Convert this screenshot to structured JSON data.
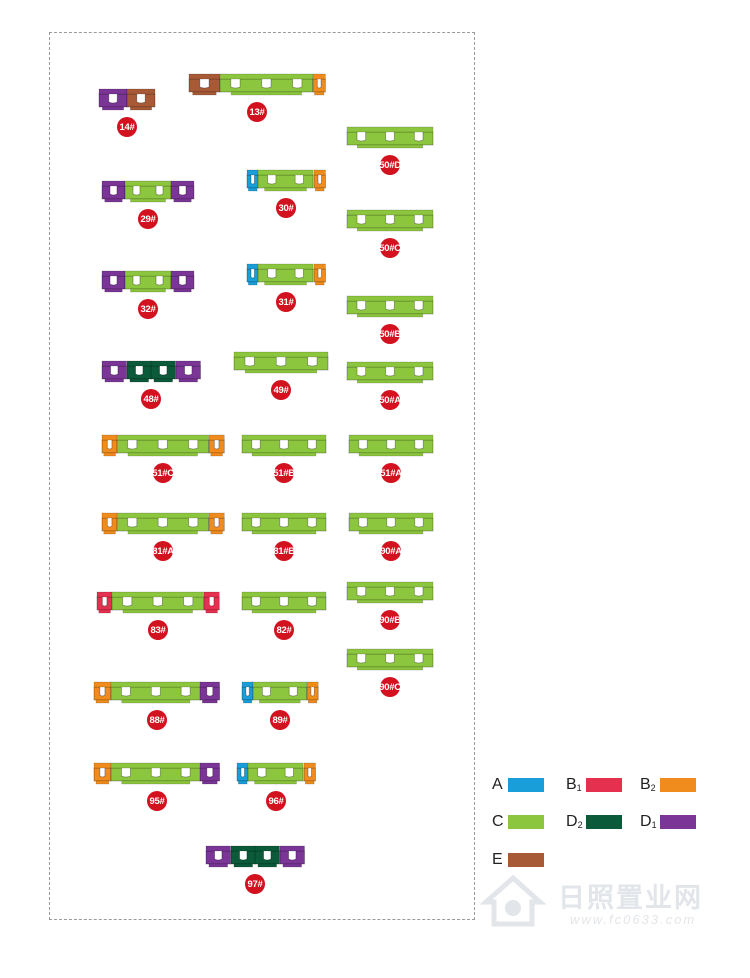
{
  "colors": {
    "A": "#1a9ed9",
    "B1": "#e6304f",
    "B2": "#f08c1e",
    "C": "#8cc63f",
    "D2": "#0b5a3a",
    "D1": "#7a3596",
    "E": "#a85a36",
    "badge": "#d2121f"
  },
  "buildings": [
    {
      "label": "14#",
      "units": [
        {
          "type": "D1",
          "w": 1
        },
        {
          "type": "E",
          "w": 1
        }
      ]
    },
    {
      "label": "13#",
      "units": [
        {
          "type": "E",
          "w": 1
        },
        {
          "type": "C",
          "w": 3
        },
        {
          "type": "B2",
          "w": 0.4
        }
      ]
    },
    {
      "label": "50#D",
      "units": [
        {
          "type": "C",
          "w": 3
        }
      ]
    },
    {
      "label": "29#",
      "units": [
        {
          "type": "D1",
          "w": 1
        },
        {
          "type": "C",
          "w": 2
        },
        {
          "type": "D1",
          "w": 1
        }
      ]
    },
    {
      "label": "30#",
      "units": [
        {
          "type": "A",
          "w": 0.5
        },
        {
          "type": "C",
          "w": 2.4
        },
        {
          "type": "B2",
          "w": 0.5
        }
      ]
    },
    {
      "label": "50#C",
      "units": [
        {
          "type": "C",
          "w": 3
        }
      ]
    },
    {
      "label": "32#",
      "units": [
        {
          "type": "D1",
          "w": 1
        },
        {
          "type": "C",
          "w": 2
        },
        {
          "type": "D1",
          "w": 1
        }
      ]
    },
    {
      "label": "31#",
      "units": [
        {
          "type": "A",
          "w": 0.5
        },
        {
          "type": "C",
          "w": 2.4
        },
        {
          "type": "B2",
          "w": 0.5
        }
      ]
    },
    {
      "label": "50#B",
      "units": [
        {
          "type": "C",
          "w": 3
        }
      ]
    },
    {
      "label": "48#",
      "units": [
        {
          "type": "D1",
          "w": 1
        },
        {
          "type": "D2",
          "w": 1
        },
        {
          "type": "D2",
          "w": 1
        },
        {
          "type": "D1",
          "w": 1
        }
      ]
    },
    {
      "label": "49#",
      "units": [
        {
          "type": "C",
          "w": 3
        }
      ]
    },
    {
      "label": "50#A",
      "units": [
        {
          "type": "C",
          "w": 3
        }
      ]
    },
    {
      "label": "51#C",
      "units": [
        {
          "type": "B2",
          "w": 0.6
        },
        {
          "type": "C",
          "w": 3.6
        },
        {
          "type": "B2",
          "w": 0.6
        }
      ]
    },
    {
      "label": "51#B",
      "units": [
        {
          "type": "C",
          "w": 3
        }
      ]
    },
    {
      "label": "51#A",
      "units": [
        {
          "type": "C",
          "w": 3
        }
      ]
    },
    {
      "label": "81#A",
      "units": [
        {
          "type": "B2",
          "w": 0.6
        },
        {
          "type": "C",
          "w": 3.6
        },
        {
          "type": "B2",
          "w": 0.6
        }
      ]
    },
    {
      "label": "81#B",
      "units": [
        {
          "type": "C",
          "w": 3
        }
      ]
    },
    {
      "label": "90#A",
      "units": [
        {
          "type": "C",
          "w": 3
        }
      ]
    },
    {
      "label": "83#",
      "units": [
        {
          "type": "B1",
          "w": 0.6
        },
        {
          "type": "C",
          "w": 3.6
        },
        {
          "type": "B1",
          "w": 0.6
        }
      ]
    },
    {
      "label": "82#",
      "units": [
        {
          "type": "C",
          "w": 3
        }
      ]
    },
    {
      "label": "90#B",
      "units": [
        {
          "type": "C",
          "w": 3
        }
      ]
    },
    {
      "label": "90#C",
      "units": [
        {
          "type": "C",
          "w": 3
        }
      ]
    },
    {
      "label": "88#",
      "units": [
        {
          "type": "B2",
          "w": 0.6
        },
        {
          "type": "C",
          "w": 3.2
        },
        {
          "type": "D1",
          "w": 0.7
        }
      ]
    },
    {
      "label": "89#",
      "units": [
        {
          "type": "A",
          "w": 0.5
        },
        {
          "type": "C",
          "w": 2.4
        },
        {
          "type": "B2",
          "w": 0.5
        }
      ]
    },
    {
      "label": "95#",
      "units": [
        {
          "type": "B2",
          "w": 0.6
        },
        {
          "type": "C",
          "w": 3.2
        },
        {
          "type": "D1",
          "w": 0.7
        }
      ]
    },
    {
      "label": "96#",
      "units": [
        {
          "type": "A",
          "w": 0.5
        },
        {
          "type": "C",
          "w": 2.4
        },
        {
          "type": "B2",
          "w": 0.5
        }
      ]
    },
    {
      "label": "97#",
      "units": [
        {
          "type": "D1",
          "w": 1
        },
        {
          "type": "D2",
          "w": 1
        },
        {
          "type": "D2",
          "w": 1
        },
        {
          "type": "D1",
          "w": 1
        }
      ]
    }
  ],
  "legend": [
    {
      "key": "A",
      "letter": "A",
      "sub": ""
    },
    {
      "key": "B1",
      "letter": "B",
      "sub": "1"
    },
    {
      "key": "B2",
      "letter": "B",
      "sub": "2"
    },
    {
      "key": "C",
      "letter": "C",
      "sub": ""
    },
    {
      "key": "D2",
      "letter": "D",
      "sub": "2"
    },
    {
      "key": "D1",
      "letter": "D",
      "sub": "1"
    },
    {
      "key": "E",
      "letter": "E",
      "sub": ""
    }
  ],
  "watermark": {
    "name": "日照置业网",
    "url": "www.fc0633.com"
  }
}
